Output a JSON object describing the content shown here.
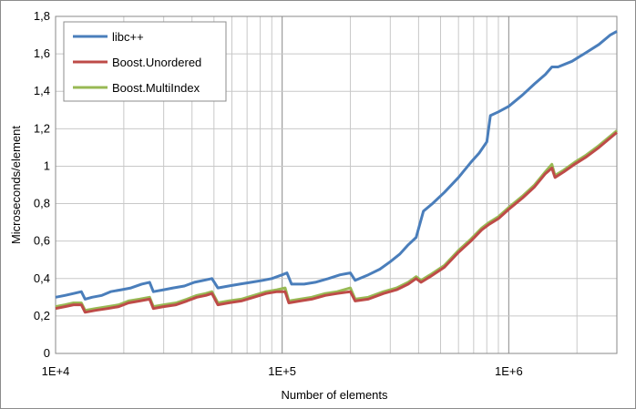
{
  "chart_data": {
    "type": "line",
    "title": "",
    "xlabel": "Number of elements",
    "ylabel": "Microseconds/element",
    "x_scale": "log",
    "xlim": [
      10000,
      3000000
    ],
    "ylim": [
      0,
      1.8
    ],
    "y_ticks": [
      "0",
      "0,2",
      "0,4",
      "0,6",
      "0,8",
      "1",
      "1,2",
      "1,4",
      "1,6",
      "1,8"
    ],
    "x_ticks": [
      "1E+4",
      "1E+5",
      "1E+6"
    ],
    "grid": true,
    "legend_position": "top-left",
    "series": [
      {
        "name": "libc++",
        "color": "#4a7ebb",
        "points": [
          [
            10000,
            0.3
          ],
          [
            11000,
            0.31
          ],
          [
            12000,
            0.32
          ],
          [
            13000,
            0.33
          ],
          [
            13500,
            0.29
          ],
          [
            14500,
            0.3
          ],
          [
            16000,
            0.31
          ],
          [
            17500,
            0.33
          ],
          [
            19500,
            0.34
          ],
          [
            21500,
            0.35
          ],
          [
            24000,
            0.37
          ],
          [
            26000,
            0.38
          ],
          [
            27000,
            0.33
          ],
          [
            30000,
            0.34
          ],
          [
            33000,
            0.35
          ],
          [
            37000,
            0.36
          ],
          [
            41000,
            0.38
          ],
          [
            45000,
            0.39
          ],
          [
            49000,
            0.4
          ],
          [
            52000,
            0.35
          ],
          [
            58000,
            0.36
          ],
          [
            65000,
            0.37
          ],
          [
            73000,
            0.38
          ],
          [
            82000,
            0.39
          ],
          [
            90000,
            0.4
          ],
          [
            100000,
            0.42
          ],
          [
            105000,
            0.43
          ],
          [
            110000,
            0.37
          ],
          [
            125000,
            0.37
          ],
          [
            140000,
            0.38
          ],
          [
            160000,
            0.4
          ],
          [
            180000,
            0.42
          ],
          [
            200000,
            0.43
          ],
          [
            210000,
            0.39
          ],
          [
            240000,
            0.42
          ],
          [
            270000,
            0.45
          ],
          [
            300000,
            0.49
          ],
          [
            330000,
            0.53
          ],
          [
            360000,
            0.58
          ],
          [
            390000,
            0.62
          ],
          [
            420000,
            0.76
          ],
          [
            460000,
            0.8
          ],
          [
            520000,
            0.86
          ],
          [
            600000,
            0.94
          ],
          [
            680000,
            1.02
          ],
          [
            740000,
            1.07
          ],
          [
            800000,
            1.13
          ],
          [
            830000,
            1.27
          ],
          [
            900000,
            1.29
          ],
          [
            1000000,
            1.32
          ],
          [
            1150000,
            1.38
          ],
          [
            1300000,
            1.44
          ],
          [
            1450000,
            1.49
          ],
          [
            1550000,
            1.53
          ],
          [
            1650000,
            1.53
          ],
          [
            1900000,
            1.56
          ],
          [
            2150000,
            1.6
          ],
          [
            2500000,
            1.65
          ],
          [
            2800000,
            1.7
          ],
          [
            3000000,
            1.72
          ]
        ]
      },
      {
        "name": "Boost.Unordered",
        "color": "#be4b48",
        "points": [
          [
            10000,
            0.24
          ],
          [
            11000,
            0.25
          ],
          [
            12000,
            0.26
          ],
          [
            13000,
            0.26
          ],
          [
            13500,
            0.22
          ],
          [
            15000,
            0.23
          ],
          [
            17000,
            0.24
          ],
          [
            19000,
            0.25
          ],
          [
            21000,
            0.27
          ],
          [
            23500,
            0.28
          ],
          [
            26000,
            0.29
          ],
          [
            27000,
            0.24
          ],
          [
            30000,
            0.25
          ],
          [
            34000,
            0.26
          ],
          [
            38000,
            0.28
          ],
          [
            42000,
            0.3
          ],
          [
            46000,
            0.31
          ],
          [
            49000,
            0.32
          ],
          [
            52000,
            0.26
          ],
          [
            58000,
            0.27
          ],
          [
            66000,
            0.28
          ],
          [
            75000,
            0.3
          ],
          [
            85000,
            0.32
          ],
          [
            95000,
            0.33
          ],
          [
            103000,
            0.33
          ],
          [
            107000,
            0.27
          ],
          [
            120000,
            0.28
          ],
          [
            135000,
            0.29
          ],
          [
            155000,
            0.31
          ],
          [
            175000,
            0.32
          ],
          [
            200000,
            0.33
          ],
          [
            210000,
            0.28
          ],
          [
            240000,
            0.29
          ],
          [
            280000,
            0.32
          ],
          [
            320000,
            0.34
          ],
          [
            360000,
            0.37
          ],
          [
            390000,
            0.4
          ],
          [
            410000,
            0.38
          ],
          [
            450000,
            0.41
          ],
          [
            520000,
            0.46
          ],
          [
            600000,
            0.54
          ],
          [
            680000,
            0.6
          ],
          [
            760000,
            0.66
          ],
          [
            820000,
            0.69
          ],
          [
            900000,
            0.72
          ],
          [
            1000000,
            0.77
          ],
          [
            1150000,
            0.83
          ],
          [
            1300000,
            0.89
          ],
          [
            1450000,
            0.96
          ],
          [
            1550000,
            0.99
          ],
          [
            1600000,
            0.94
          ],
          [
            1750000,
            0.97
          ],
          [
            1950000,
            1.01
          ],
          [
            2200000,
            1.05
          ],
          [
            2500000,
            1.1
          ],
          [
            2800000,
            1.15
          ],
          [
            3000000,
            1.18
          ]
        ]
      },
      {
        "name": "Boost.MultiIndex",
        "color": "#98b954",
        "points": [
          [
            10000,
            0.25
          ],
          [
            11000,
            0.26
          ],
          [
            12000,
            0.27
          ],
          [
            13000,
            0.27
          ],
          [
            13500,
            0.23
          ],
          [
            15000,
            0.24
          ],
          [
            17000,
            0.25
          ],
          [
            19000,
            0.26
          ],
          [
            21000,
            0.28
          ],
          [
            23500,
            0.29
          ],
          [
            26000,
            0.3
          ],
          [
            27000,
            0.25
          ],
          [
            30000,
            0.26
          ],
          [
            34000,
            0.27
          ],
          [
            38000,
            0.29
          ],
          [
            42000,
            0.31
          ],
          [
            46000,
            0.32
          ],
          [
            49000,
            0.33
          ],
          [
            52000,
            0.27
          ],
          [
            58000,
            0.28
          ],
          [
            66000,
            0.29
          ],
          [
            75000,
            0.31
          ],
          [
            85000,
            0.33
          ],
          [
            95000,
            0.34
          ],
          [
            103000,
            0.35
          ],
          [
            107000,
            0.28
          ],
          [
            120000,
            0.29
          ],
          [
            135000,
            0.3
          ],
          [
            155000,
            0.32
          ],
          [
            175000,
            0.33
          ],
          [
            200000,
            0.35
          ],
          [
            210000,
            0.29
          ],
          [
            240000,
            0.3
          ],
          [
            280000,
            0.33
          ],
          [
            320000,
            0.35
          ],
          [
            360000,
            0.38
          ],
          [
            390000,
            0.41
          ],
          [
            410000,
            0.39
          ],
          [
            450000,
            0.42
          ],
          [
            520000,
            0.47
          ],
          [
            600000,
            0.55
          ],
          [
            680000,
            0.61
          ],
          [
            760000,
            0.67
          ],
          [
            820000,
            0.7
          ],
          [
            900000,
            0.73
          ],
          [
            1000000,
            0.78
          ],
          [
            1150000,
            0.84
          ],
          [
            1300000,
            0.9
          ],
          [
            1450000,
            0.97
          ],
          [
            1550000,
            1.01
          ],
          [
            1600000,
            0.95
          ],
          [
            1750000,
            0.98
          ],
          [
            1950000,
            1.02
          ],
          [
            2200000,
            1.06
          ],
          [
            2500000,
            1.11
          ],
          [
            2800000,
            1.16
          ],
          [
            3000000,
            1.19
          ]
        ]
      }
    ]
  }
}
